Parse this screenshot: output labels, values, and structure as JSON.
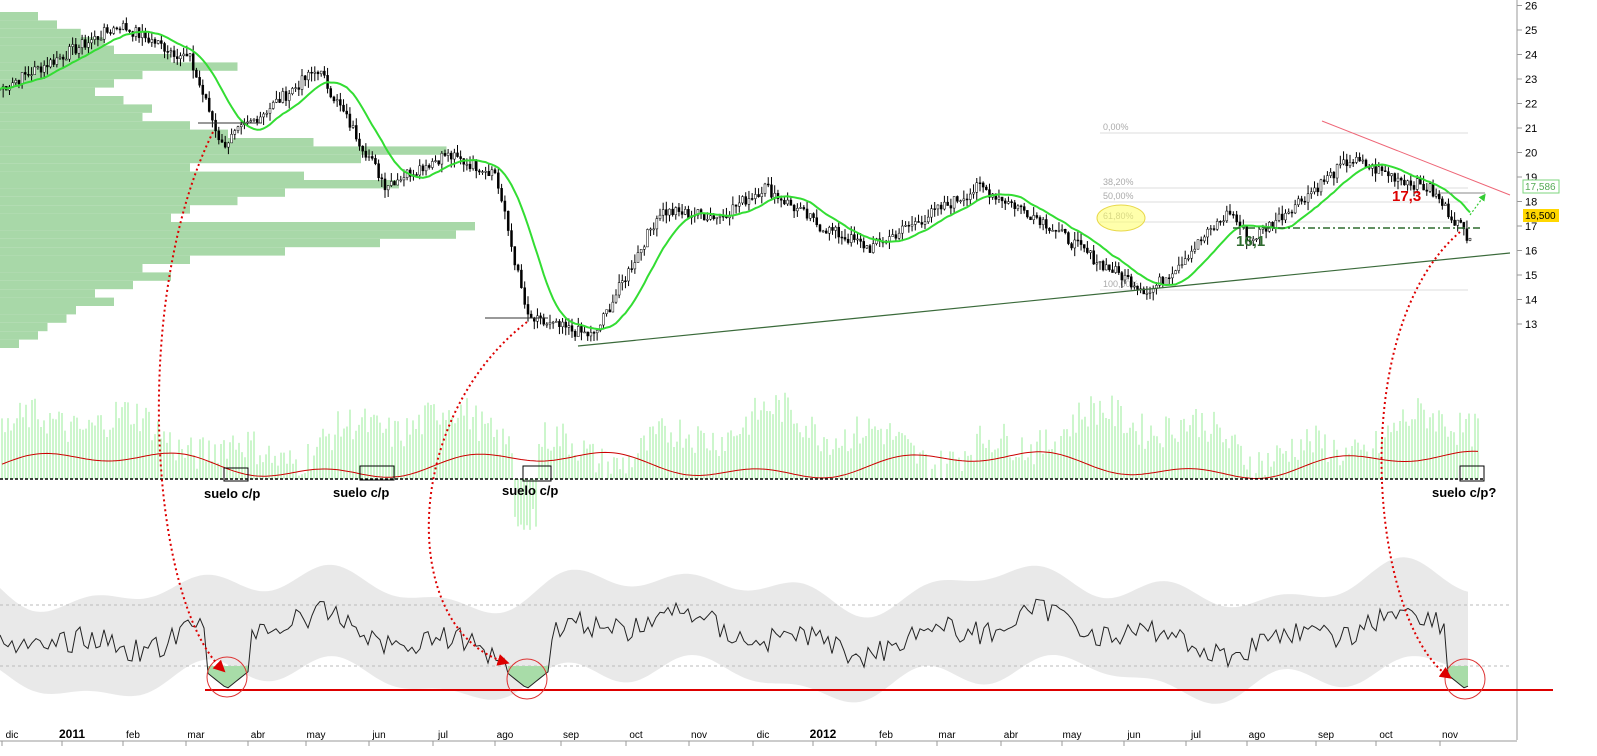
{
  "chart_data": {
    "type": "candlestick",
    "title": "",
    "price_axis": {
      "ticks": [
        "13",
        "14",
        "15",
        "16",
        "17",
        "18",
        "19",
        "20",
        "21",
        "22",
        "23",
        "24",
        "25",
        "26"
      ],
      "range": [
        12.3,
        26
      ]
    },
    "time_axis": {
      "labels": [
        "dic",
        "2011",
        "feb",
        "mar",
        "abr",
        "may",
        "jun",
        "jul",
        "ago",
        "sep",
        "oct",
        "nov",
        "dic",
        "2012",
        "feb",
        "mar",
        "abr",
        "may",
        "jun",
        "jul",
        "ago",
        "sep",
        "oct",
        "nov"
      ]
    },
    "price_tags": [
      {
        "value": "17,586",
        "color": "#ffffff",
        "bg": "#7cd67c"
      },
      {
        "value": "16,500",
        "color": "#000000",
        "bg": "#ffd700"
      }
    ],
    "price_anchors": [
      {
        "month": "dic",
        "value": 22.6
      },
      {
        "month": "feb",
        "value": 25.2
      },
      {
        "month": "mar",
        "value": 23.8
      },
      {
        "month": "mar",
        "value": 20.3
      },
      {
        "month": "may",
        "value": 23.4
      },
      {
        "month": "jun",
        "value": 18.7
      },
      {
        "month": "jul",
        "value": 19.9
      },
      {
        "month": "ago",
        "value": 19.2
      },
      {
        "month": "ago",
        "value": 13.2
      },
      {
        "month": "sep",
        "value": 12.5
      },
      {
        "month": "oct",
        "value": 17.6
      },
      {
        "month": "nov",
        "value": 17.4
      },
      {
        "month": "dic",
        "value": 18.6
      },
      {
        "month": "2012",
        "value": 17.0
      },
      {
        "month": "feb",
        "value": 16.1
      },
      {
        "month": "mar",
        "value": 18.6
      },
      {
        "month": "abr",
        "value": 17.3
      },
      {
        "month": "may",
        "value": 15.5
      },
      {
        "month": "jun",
        "value": 14.3
      },
      {
        "month": "jul",
        "value": 17.6
      },
      {
        "month": "ago",
        "value": 16.4
      },
      {
        "month": "sep",
        "value": 19.7
      },
      {
        "month": "oct",
        "value": 18.5
      },
      {
        "month": "nov",
        "value": 16.5
      }
    ],
    "fibonacci_levels": [
      "0,00%",
      "38,20%",
      "50,00%",
      "61,80%",
      "100,00%"
    ],
    "annotations": {
      "resistance": "17,3",
      "support": "16,1"
    },
    "indicator_panel": {
      "floor_labels": [
        "suelo c/p",
        "suelo c/p",
        "suelo c/p",
        "suelo c/p?"
      ]
    }
  },
  "colors": {
    "moving_average": "#33dd33",
    "volume_profile": "#a8d8a8",
    "indicator_bars": "#99ee99",
    "indicator_line": "#cc0000",
    "oscillator_band": "#e0e0e0",
    "support_line": "#dd0000",
    "trendline": "#3a6a3a",
    "arrows": "#dd0000",
    "resistance_text": "#dd0000",
    "support_text": "#2e6b2e"
  }
}
